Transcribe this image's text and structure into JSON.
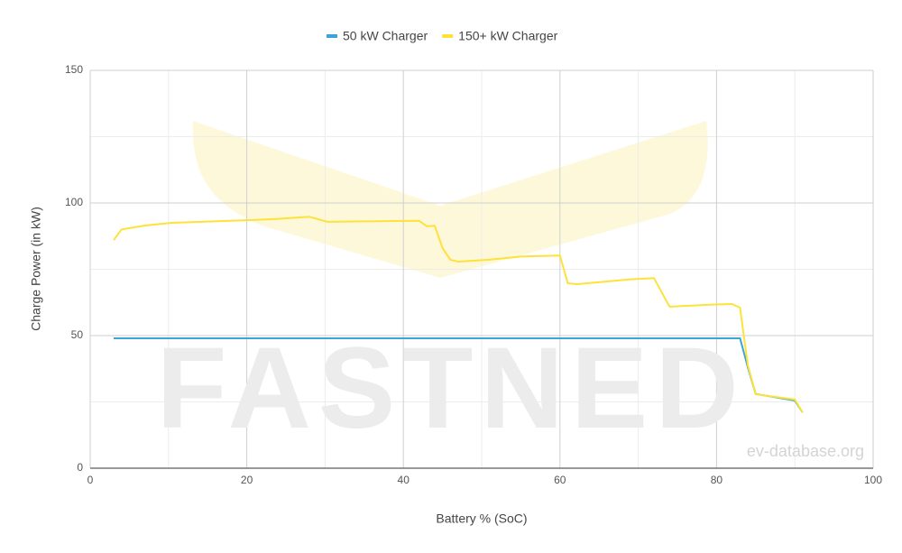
{
  "chart_data": {
    "type": "line",
    "x_label": "Battery % (SoC)",
    "y_label": "Charge Power (in kW)",
    "watermark": "FASTNED",
    "source_note": "ev-database.org",
    "xlim": [
      0,
      100
    ],
    "xticks": [
      0,
      20,
      40,
      60,
      80,
      100
    ],
    "ylim": [
      0,
      150
    ],
    "yticks": [
      0,
      50,
      100,
      150
    ],
    "x_minor_grid": [
      10,
      30,
      50,
      70,
      90
    ],
    "y_minor_grid": [
      25,
      75,
      125
    ],
    "grid": true,
    "legend": "top",
    "series": [
      {
        "name": "50 kW Charger",
        "color": "#3aa6d6",
        "x": [
          3,
          83,
          84,
          85,
          90,
          91
        ],
        "values": [
          49,
          49,
          38,
          28,
          25.5,
          21
        ]
      },
      {
        "name": "150+ kW Charger",
        "color": "#fde23a",
        "x": [
          3,
          4,
          7,
          10.4,
          20,
          24,
          28,
          30.3,
          42,
          43,
          44,
          45,
          46,
          47,
          51,
          55,
          60,
          61,
          62.2,
          69,
          72,
          74,
          79.5,
          82,
          83,
          84,
          85,
          90,
          91
        ],
        "values": [
          86,
          90,
          91.5,
          92.5,
          93.5,
          94,
          94.8,
          92.9,
          93.3,
          91.2,
          91.4,
          83,
          78.6,
          77.9,
          78.6,
          79.8,
          80.2,
          69.7,
          69.4,
          71.2,
          71.7,
          60.9,
          61.7,
          61.9,
          60.5,
          38.8,
          27.9,
          25.9,
          21
        ]
      }
    ]
  }
}
